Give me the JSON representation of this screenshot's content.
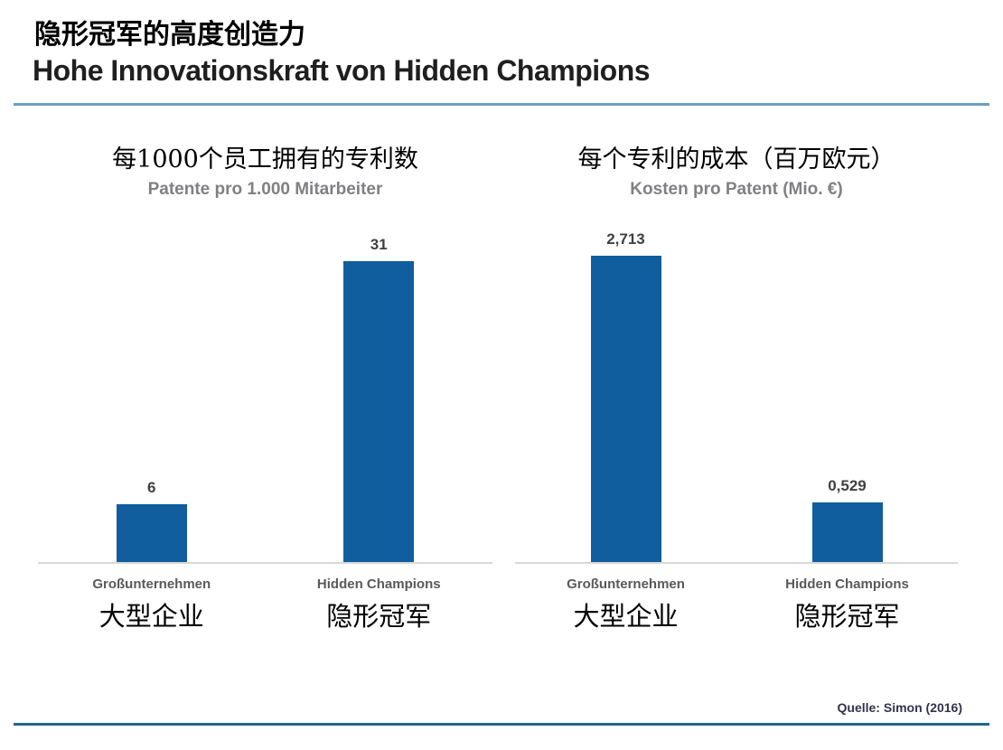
{
  "slide": {
    "title_zh": "隐形冠军的高度创造力",
    "title_de": "Hohe Innovationskraft von Hidden Champions",
    "source": "Quelle: Simon (2016)"
  },
  "colors": {
    "bar": "#115E9E",
    "top_divider": "#6B9DC6",
    "bottom_divider": "#21678F",
    "baseline": "#D9D9D9"
  },
  "chart_data": [
    {
      "type": "bar",
      "title_zh": "每1000个员工拥有的专利数",
      "title_de": "Patente pro 1.000 Mitarbeiter",
      "categories_de": [
        "Großunternehmen",
        "Hidden Champions"
      ],
      "categories_zh": [
        "大型企业",
        "隐形冠军"
      ],
      "values": [
        6,
        31
      ],
      "value_labels": [
        "6",
        "31"
      ],
      "ylim": [
        0,
        32.6
      ],
      "grid": false,
      "legend": false
    },
    {
      "type": "bar",
      "title_zh": "每个专利的成本（百万欧元）",
      "title_de": "Kosten pro Patent (Mio. €)",
      "categories_de": [
        "Großunternehmen",
        "Hidden Champions"
      ],
      "categories_zh": [
        "大型企业",
        "隐形冠军"
      ],
      "values": [
        2.713,
        0.529
      ],
      "value_labels": [
        "2,713",
        "0,529"
      ],
      "ylim": [
        0,
        2.8
      ],
      "grid": false,
      "legend": false
    }
  ]
}
